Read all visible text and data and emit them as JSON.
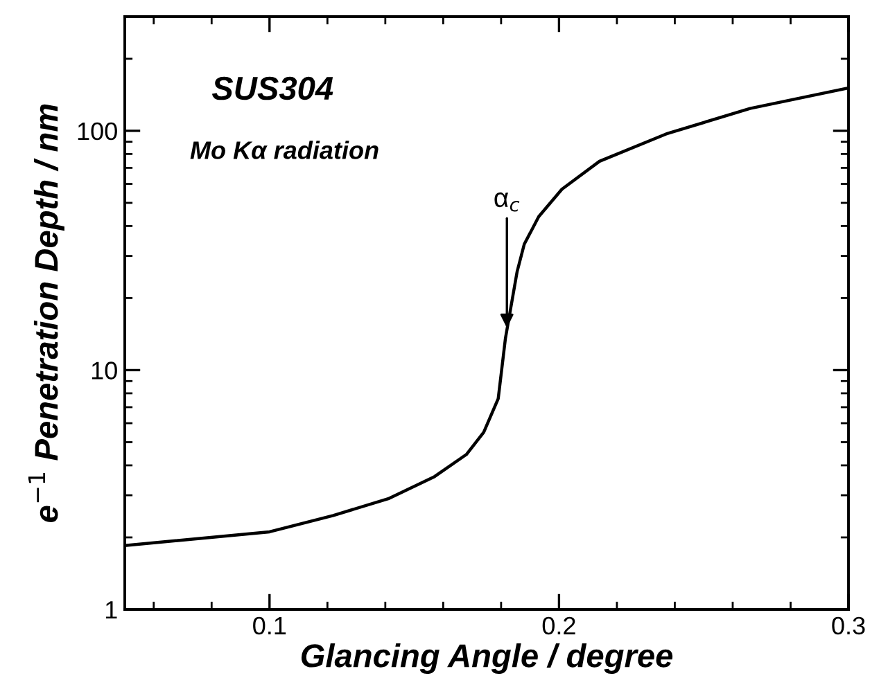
{
  "chart_data": {
    "type": "line",
    "xlabel": "Glancing Angle / degree",
    "ylabel": "e$^{−1}$ Penetration Depth / nm",
    "x": [
      0.05,
      0.1,
      0.122,
      0.141,
      0.157,
      0.168,
      0.174,
      0.179,
      0.1815,
      0.1855,
      0.188,
      0.193,
      0.201,
      0.214,
      0.237,
      0.266,
      0.3
    ],
    "series": [
      {
        "color": "#000000",
        "values": [
          1.85,
          2.11,
          2.47,
          2.9,
          3.59,
          4.44,
          5.5,
          7.6,
          13.6,
          25.7,
          33.6,
          43.8,
          57,
          74.6,
          97,
          124,
          151
        ]
      }
    ],
    "annotations": [
      "SUS304",
      "Mo Kα radiation",
      {
        "text": "α$_{c}$",
        "x": 0.182,
        "y": 15
      }
    ],
    "log": "y",
    "xlim": [
      0.05,
      0.3
    ],
    "xticks": [
      0.1,
      0.2,
      0.3
    ],
    "ylim": [
      1,
      300
    ],
    "yticks": [
      1,
      10,
      100
    ],
    "grid": false,
    "legend": false,
    "marker": "none",
    "line_style": "solid"
  }
}
